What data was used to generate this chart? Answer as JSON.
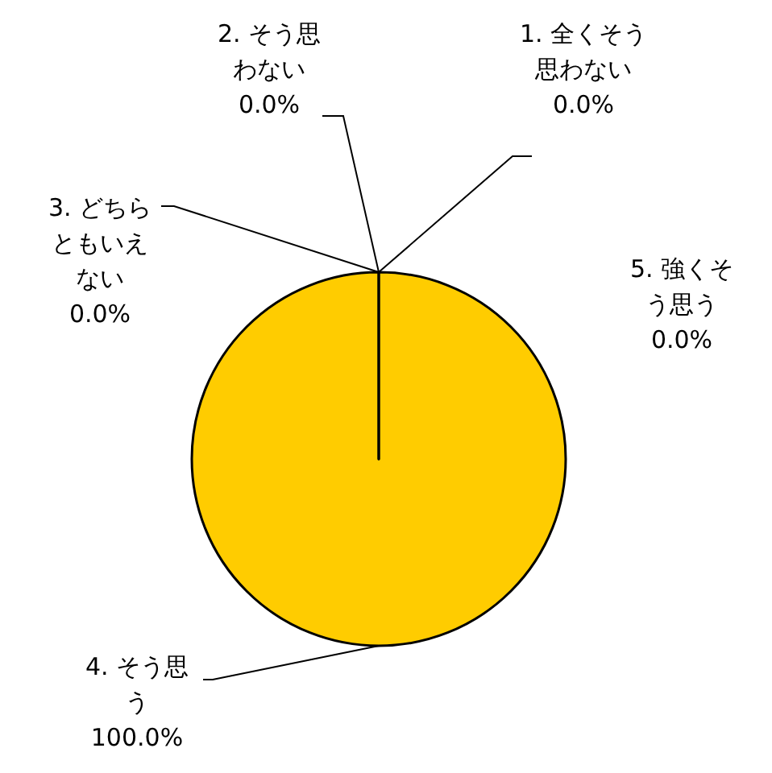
{
  "chart_data": {
    "type": "pie",
    "categories": [
      "1. 全くそう思わない",
      "2. そう思わない",
      "3. どちらともいえない",
      "4. そう思う",
      "5. 強くそう思う"
    ],
    "values": [
      0,
      0,
      0,
      100,
      0
    ],
    "value_labels": [
      "0.0%",
      "0.0%",
      "0.0%",
      "100.0%",
      "0.0%"
    ],
    "colors": [
      "#ffcc00",
      "#ffcc00",
      "#ffcc00",
      "#ffcc00",
      "#ffcc00"
    ]
  }
}
